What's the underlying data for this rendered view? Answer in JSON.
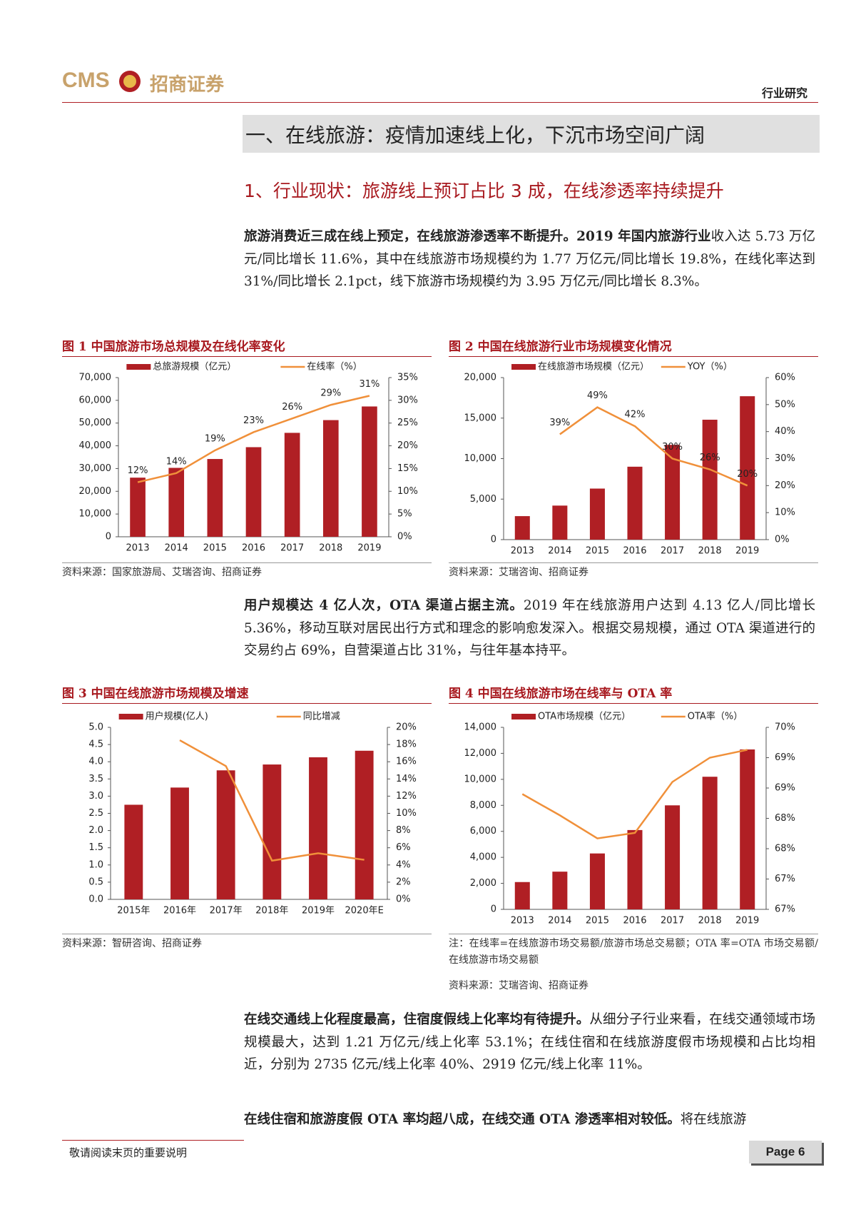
{
  "header": {
    "logo_text": "CMS",
    "company": "招商证券",
    "category": "行业研究"
  },
  "section_title": "一、在线旅游：疫情加速线上化，下沉市场空间广阔",
  "subsection_title": "1、行业现状：旅游线上预订占比 3 成，在线渗透率持续提升",
  "paragraphs": [
    {
      "lead": "旅游消费近三成在线上预定，在线旅游渗透率不断提升。2019 年国内旅游行业",
      "text": "收入达 5.73 万亿元/同比增长 11.6%，其中在线旅游市场规模约为 1.77 万亿元/同比增长 19.8%，在线化率达到 31%/同比增长 2.1pct，线下旅游市场规模约为 3.95 万亿元/同比增长 8.3%。"
    },
    {
      "lead": "用户规模达 4 亿人次，OTA 渠道占据主流。",
      "text": "2019 年在线旅游用户达到 4.13 亿人/同比增长 5.36%，移动互联对居民出行方式和理念的影响愈发深入。根据交易规模，通过 OTA 渠道进行的交易约占 69%，自营渠道占比 31%，与往年基本持平。"
    },
    {
      "lead": "在线交通线上化程度最高，住宿度假线上化率均有待提升。",
      "text": "从细分子行业来看，在线交通领域市场规模最大，达到 1.21 万亿元/线上化率 53.1%；在线住宿和在线旅游度假市场规模和占比均相近，分别为 2735 亿元/线上化率 40%、2919 亿元/线上化率 11%。"
    },
    {
      "lead": "在线住宿和旅游度假 OTA 率均超八成，在线交通 OTA 渗透率相对较低。",
      "text": "将在线旅游"
    }
  ],
  "chart_data": [
    {
      "type": "bar",
      "title": "图 1 中国旅游市场总规模及在线化率变化",
      "source": "资料来源：国家旅游局、艾瑞咨询、招商证券",
      "categories": [
        "2013",
        "2014",
        "2015",
        "2016",
        "2017",
        "2018",
        "2019"
      ],
      "series": [
        {
          "name": "总旅游规模（亿元）",
          "type": "bar",
          "color": "#b01f24",
          "values": [
            26000,
            30300,
            34200,
            39400,
            45700,
            51300,
            57300
          ]
        },
        {
          "name": "在线率（%）",
          "type": "line",
          "axis": "y2",
          "color": "#f0903a",
          "values": [
            12,
            14,
            19,
            23,
            26,
            29,
            31
          ],
          "value_labels": [
            "12%",
            "14%",
            "19%",
            "23%",
            "26%",
            "29%",
            "31%"
          ]
        }
      ],
      "ylim": [
        0,
        70000
      ],
      "yticks": [
        0,
        {
          "value": 10000,
          "label": "10,000"
        },
        {
          "value": 20000,
          "label": "20,000"
        },
        {
          "value": 30000,
          "label": "30,000"
        },
        {
          "value": 40000,
          "label": "40,000"
        },
        {
          "value": 50000,
          "label": "50,000"
        },
        {
          "value": 60000,
          "label": "60,000"
        },
        {
          "value": 70000,
          "label": "70,000"
        }
      ],
      "y2lim": [
        0,
        35
      ],
      "y2ticks": [
        {
          "value": 0,
          "label": "0%"
        },
        {
          "value": 5,
          "label": "5%"
        },
        {
          "value": 10,
          "label": "10%"
        },
        {
          "value": 15,
          "label": "15%"
        },
        {
          "value": 20,
          "label": "20%"
        },
        {
          "value": 25,
          "label": "25%"
        },
        {
          "value": 30,
          "label": "30%"
        },
        {
          "value": 35,
          "label": "35%"
        }
      ]
    },
    {
      "type": "bar",
      "title": "图 2 中国在线旅游行业市场规模变化情况",
      "source": "资料来源：艾瑞咨询、招商证券",
      "categories": [
        "2013",
        "2014",
        "2015",
        "2016",
        "2017",
        "2018",
        "2019"
      ],
      "series": [
        {
          "name": "在线旅游市场规模（亿元）",
          "type": "bar",
          "color": "#b01f24",
          "values": [
            2900,
            4200,
            6300,
            9000,
            11700,
            14800,
            17700
          ]
        },
        {
          "name": "YOY（%）",
          "type": "line",
          "axis": "y2",
          "color": "#f0903a",
          "values": [
            null,
            39,
            49,
            42,
            30,
            26,
            20
          ],
          "value_labels": [
            null,
            "39%",
            "49%",
            "42%",
            "30%",
            "26%",
            "20%"
          ]
        }
      ],
      "ylim": [
        0,
        20000
      ],
      "yticks": [
        0,
        {
          "value": 5000,
          "label": "5,000"
        },
        {
          "value": 10000,
          "label": "10,000"
        },
        {
          "value": 15000,
          "label": "15,000"
        },
        {
          "value": 20000,
          "label": "20,000"
        }
      ],
      "y2lim": [
        0,
        60
      ],
      "y2ticks": [
        {
          "value": 0,
          "label": "0%"
        },
        {
          "value": 10,
          "label": "10%"
        },
        {
          "value": 20,
          "label": "20%"
        },
        {
          "value": 30,
          "label": "30%"
        },
        {
          "value": 40,
          "label": "40%"
        },
        {
          "value": 50,
          "label": "50%"
        },
        {
          "value": 60,
          "label": "60%"
        }
      ]
    },
    {
      "type": "bar",
      "title": "图 3 中国在线旅游市场规模及增速",
      "source": "资料来源：智研咨询、招商证券",
      "categories": [
        "2015年",
        "2016年",
        "2017年",
        "2018年",
        "2019年",
        "2020年E"
      ],
      "series": [
        {
          "name": "用户规模(亿人)",
          "type": "bar",
          "color": "#b01f24",
          "values": [
            2.75,
            3.25,
            3.75,
            3.92,
            4.13,
            4.32
          ]
        },
        {
          "name": "同比增减",
          "type": "line",
          "axis": "y2",
          "color": "#f0903a",
          "values": [
            null,
            18.5,
            15.5,
            4.5,
            5.36,
            4.6
          ]
        }
      ],
      "ylim": [
        0,
        5
      ],
      "yticks": [
        {
          "value": 0,
          "label": "0.0"
        },
        0.5,
        {
          "value": 1,
          "label": "1.0"
        },
        1.5,
        {
          "value": 2,
          "label": "2.0"
        },
        2.5,
        {
          "value": 3,
          "label": "3.0"
        },
        3.5,
        {
          "value": 4,
          "label": "4.0"
        },
        4.5,
        {
          "value": 5,
          "label": "5.0"
        }
      ],
      "y2lim": [
        0,
        20
      ],
      "y2ticks": [
        {
          "value": 0,
          "label": "0%"
        },
        {
          "value": 2,
          "label": "2%"
        },
        {
          "value": 4,
          "label": "4%"
        },
        {
          "value": 6,
          "label": "6%"
        },
        {
          "value": 8,
          "label": "8%"
        },
        {
          "value": 10,
          "label": "10%"
        },
        {
          "value": 12,
          "label": "12%"
        },
        {
          "value": 14,
          "label": "14%"
        },
        {
          "value": 16,
          "label": "16%"
        },
        {
          "value": 18,
          "label": "18%"
        },
        {
          "value": 20,
          "label": "20%"
        }
      ]
    },
    {
      "type": "bar",
      "title": "图 4 中国在线旅游市场在线率与 OTA 率",
      "note": "注：在线率=在线旅游市场交易额/旅游市场总交易额；OTA 率=OTA 市场交易额/在线旅游市场交易额",
      "source": "资料来源：艾瑞咨询、招商证券",
      "categories": [
        "2013",
        "2014",
        "2015",
        "2016",
        "2017",
        "2018",
        "2019"
      ],
      "series": [
        {
          "name": "OTA市场规模（亿元）",
          "type": "bar",
          "color": "#b01f24",
          "values": [
            2100,
            2900,
            4300,
            6100,
            8000,
            10200,
            12300
          ]
        },
        {
          "name": "OTA率（%）",
          "type": "line",
          "axis": "y2",
          "color": "#f0903a",
          "values": [
            68.9,
            68.55,
            68.17,
            68.26,
            69.1,
            69.5,
            69.63
          ]
        }
      ],
      "ylim": [
        0,
        14000
      ],
      "yticks": [
        0,
        {
          "value": 2000,
          "label": "2,000"
        },
        {
          "value": 4000,
          "label": "4,000"
        },
        {
          "value": 6000,
          "label": "6,000"
        },
        {
          "value": 8000,
          "label": "8,000"
        },
        {
          "value": 10000,
          "label": "10,000"
        },
        {
          "value": 12000,
          "label": "12,000"
        },
        {
          "value": 14000,
          "label": "14,000"
        }
      ],
      "y2lim": [
        67,
        70
      ],
      "y2ticks": [
        {
          "value": 67,
          "label": "67%"
        },
        {
          "value": 67.5,
          "label": "67%"
        },
        {
          "value": 68,
          "label": "68%"
        },
        {
          "value": 68.5,
          "label": "68%"
        },
        {
          "value": 69,
          "label": "69%"
        },
        {
          "value": 69.5,
          "label": "69%"
        },
        {
          "value": 70,
          "label": "70%"
        }
      ]
    }
  ],
  "footer": {
    "notice": "敬请阅读末页的重要说明",
    "page": "Page 6"
  }
}
